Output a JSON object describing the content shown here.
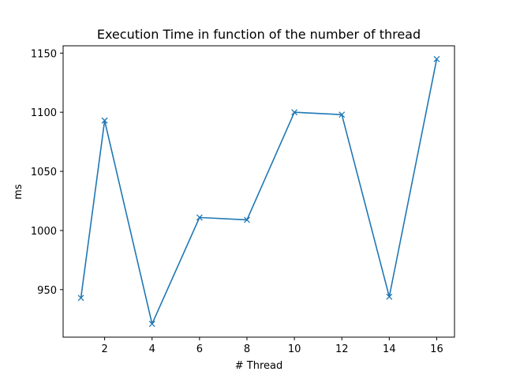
{
  "chart_data": {
    "type": "line",
    "title": "Execution Time in function of the number of thread",
    "xlabel": "# Thread",
    "ylabel": "ms",
    "x": [
      1,
      2,
      4,
      6,
      8,
      10,
      12,
      14,
      16
    ],
    "series": [
      {
        "values": [
          943,
          1093,
          921,
          1011,
          1009,
          1100,
          1098,
          944,
          1145
        ],
        "color": "#1f77b4",
        "marker": "x"
      }
    ],
    "xticks": [
      "2",
      "4",
      "6",
      "8",
      "10",
      "12",
      "14",
      "16"
    ],
    "yticks": [
      "950",
      "1000",
      "1050",
      "1100",
      "1150"
    ],
    "xlim": [
      0.25,
      16.75
    ],
    "ylim": [
      909.8,
      1156.2
    ],
    "grid": false,
    "legend": "none"
  }
}
